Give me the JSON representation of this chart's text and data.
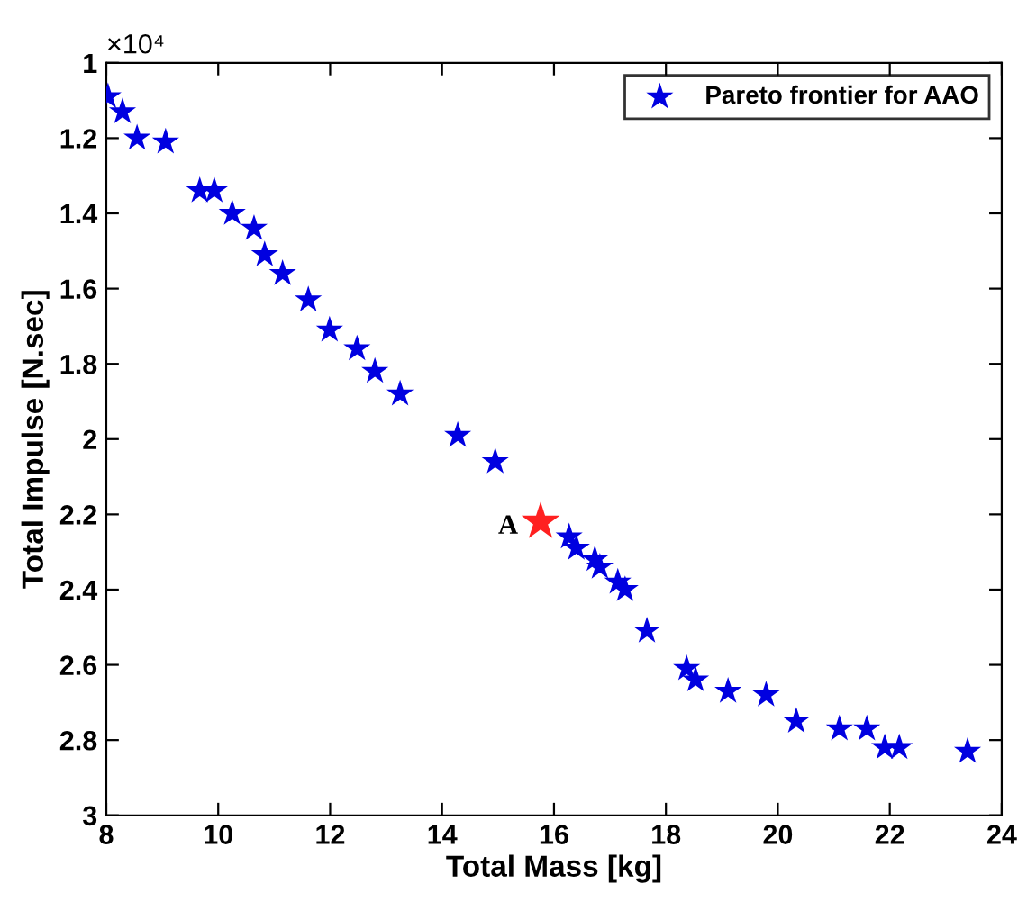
{
  "chart_data": {
    "type": "scatter",
    "xlabel": "Total Mass [kg]",
    "ylabel": "Total Impulse [N.sec]",
    "annotations": [
      "×10⁴",
      {
        "text": "A",
        "x": 15.76,
        "y": 2.22
      }
    ],
    "xlim": [
      8,
      24
    ],
    "xticks": [
      8,
      10,
      12,
      14,
      16,
      18,
      20,
      22,
      24
    ],
    "ylim": [
      3,
      1
    ],
    "yticks": [
      1,
      1.2,
      1.4,
      1.6,
      1.8,
      2,
      2.2,
      2.4,
      2.6,
      2.8,
      3
    ],
    "grid": false,
    "legend": "top right",
    "marker": "star",
    "series": [
      {
        "name": "Pareto frontier for AAO",
        "color": "#0000e0",
        "x": [
          8.03,
          8.29,
          8.55,
          9.06,
          9.67,
          9.93,
          10.25,
          10.64,
          10.83,
          11.15,
          11.61,
          11.99,
          12.48,
          12.8,
          13.25,
          14.28,
          14.95,
          16.27,
          16.4,
          16.73,
          16.82,
          17.14,
          17.27,
          17.66,
          18.37,
          18.53,
          19.11,
          19.79,
          20.33,
          21.1,
          21.59,
          21.91,
          22.17,
          23.39
        ],
        "values": [
          1.09,
          1.13,
          1.2,
          1.21,
          1.34,
          1.34,
          1.4,
          1.44,
          1.51,
          1.56,
          1.63,
          1.71,
          1.76,
          1.82,
          1.88,
          1.99,
          2.06,
          2.26,
          2.29,
          2.32,
          2.34,
          2.38,
          2.4,
          2.51,
          2.61,
          2.64,
          2.67,
          2.68,
          2.75,
          2.77,
          2.77,
          2.82,
          2.82,
          2.83
        ]
      },
      {
        "color": "#ff2020",
        "x": [
          15.76
        ],
        "values": [
          2.22
        ]
      }
    ]
  }
}
